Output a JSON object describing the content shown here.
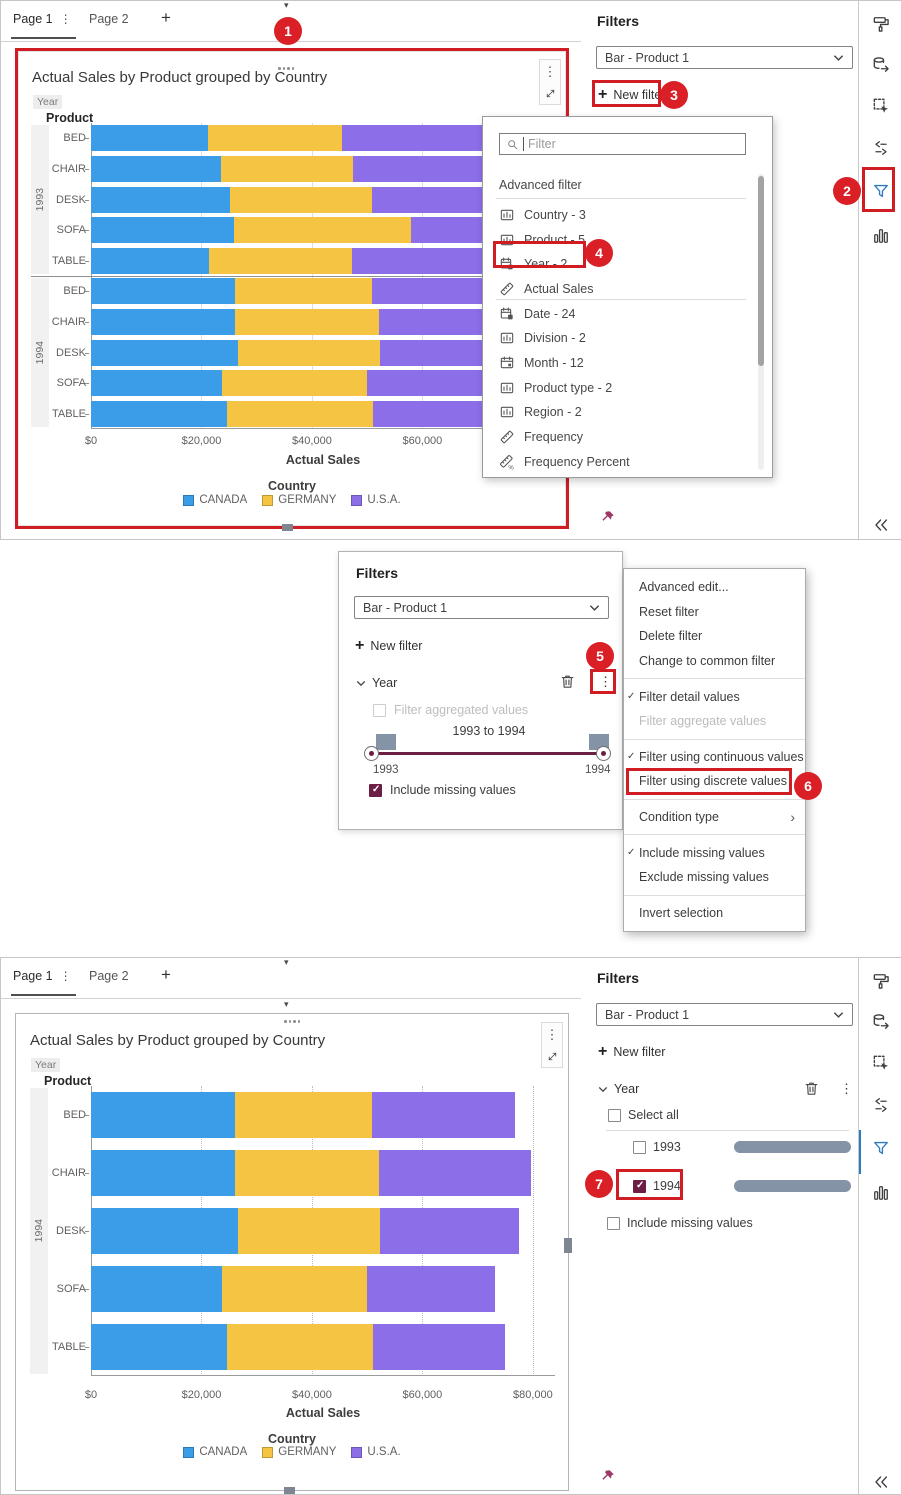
{
  "colors": {
    "series": [
      "#3b9ce8",
      "#f5c442",
      "#8c6ee8"
    ],
    "callout": "#da1f26",
    "highlight_box": "#d01d24",
    "checkbox_checked": "#6d1e45",
    "slider_track": "#6d1e45",
    "frequency_bar": "#8593a7",
    "active_rail_icon": "#2d7bbf"
  },
  "window_top": {
    "tabs": [
      {
        "label": "Page 1",
        "active": true
      },
      {
        "label": "Page 2",
        "active": false
      }
    ],
    "add_tab_label": "+",
    "filters_panel": {
      "title": "Filters",
      "object_selector": "Bar - Product 1",
      "new_filter_label": "New filter"
    },
    "field_list": {
      "search_placeholder": "Filter",
      "advanced_label": "Advanced filter",
      "items": [
        {
          "label": "Country - 3",
          "icon": "category-icon"
        },
        {
          "label": "Product - 5",
          "icon": "category-icon"
        },
        {
          "label": "Year - 2",
          "icon": "year-calendar-icon",
          "highlighted": true
        },
        {
          "label": "Actual Sales",
          "icon": "measure-icon",
          "divider_after": true
        },
        {
          "label": "Date - 24",
          "icon": "year-calendar-icon"
        },
        {
          "label": "Division - 2",
          "icon": "category-icon"
        },
        {
          "label": "Month - 12",
          "icon": "month-calendar-icon"
        },
        {
          "label": "Product type - 2",
          "icon": "category-icon"
        },
        {
          "label": "Region - 2",
          "icon": "category-icon"
        },
        {
          "label": "Frequency",
          "icon": "measure-icon"
        },
        {
          "label": "Frequency Percent",
          "icon": "measure-percent-icon"
        }
      ]
    }
  },
  "middle_panel": {
    "title": "Filters",
    "object_selector": "Bar - Product 1",
    "new_filter_label": "New filter",
    "year_filter": {
      "label": "Year",
      "aggregated_checkbox": "Filter aggregated values",
      "range_text": "1993 to 1994",
      "slider_min": "1993",
      "slider_max": "1994",
      "include_missing": "Include missing values",
      "include_missing_checked": true
    },
    "context_menu": {
      "groups": [
        [
          {
            "label": "Advanced edit..."
          },
          {
            "label": "Reset filter"
          },
          {
            "label": "Delete filter"
          },
          {
            "label": "Change to common filter"
          }
        ],
        [
          {
            "label": "Filter detail values",
            "checked": true
          },
          {
            "label": "Filter aggregate values",
            "disabled": true
          }
        ],
        [
          {
            "label": "Filter using continuous values",
            "checked": true
          },
          {
            "label": "Filter using discrete values",
            "highlighted": true
          }
        ],
        [
          {
            "label": "Condition type",
            "submenu": true
          }
        ],
        [
          {
            "label": "Include missing values",
            "checked": true
          },
          {
            "label": "Exclude missing values"
          }
        ],
        [
          {
            "label": "Invert selection"
          }
        ]
      ]
    }
  },
  "window_bottom": {
    "tabs": [
      {
        "label": "Page 1",
        "active": true
      },
      {
        "label": "Page 2",
        "active": false
      }
    ],
    "add_tab_label": "+",
    "filters_panel": {
      "title": "Filters",
      "object_selector": "Bar - Product 1",
      "new_filter_label": "New filter",
      "year_filter": {
        "label": "Year",
        "select_all": "Select all",
        "options": [
          {
            "label": "1993",
            "checked": false
          },
          {
            "label": "1994",
            "checked": true,
            "highlighted": true
          }
        ],
        "include_missing": "Include missing values",
        "include_missing_checked": false
      }
    }
  },
  "rail_icons": [
    "assign-data-icon",
    "export-data-icon",
    "selection-icon",
    "ranks-icon",
    "filter-icon",
    "chart-objects-icon"
  ],
  "collapse_icon": "collapse-icon",
  "callouts": [
    "1",
    "2",
    "3",
    "4",
    "5",
    "6",
    "7"
  ],
  "chart_data": [
    {
      "type": "bar",
      "stacked": true,
      "orientation": "horizontal",
      "title": "Actual Sales by Product grouped by Country",
      "group_label": "Year",
      "category_label": "Product",
      "xlabel": "Actual Sales",
      "legend_title": "Country",
      "legend_position": "bottom",
      "xlim": [
        0,
        84000
      ],
      "xticks": [
        {
          "value": 0,
          "label": "$0"
        },
        {
          "value": 20000,
          "label": "$20,000"
        },
        {
          "value": 40000,
          "label": "$40,000"
        },
        {
          "value": 60000,
          "label": "$60,000"
        }
      ],
      "series": [
        "CANADA",
        "GERMANY",
        "U.S.A."
      ],
      "series_colors": [
        "#3b9ce8",
        "#f5c442",
        "#8c6ee8"
      ],
      "groups": [
        {
          "year": "1993",
          "categories": [
            "BED",
            "CHAIR",
            "DESK",
            "SOFA",
            "TABLE"
          ],
          "values": [
            [
              21100,
              24400,
              27000
            ],
            [
              23600,
              23900,
              26000
            ],
            [
              25200,
              25700,
              25000
            ],
            [
              25900,
              32000,
              18000
            ],
            [
              21400,
              25900,
              26000
            ]
          ]
        },
        {
          "year": "1994",
          "categories": [
            "BED",
            "CHAIR",
            "DESK",
            "SOFA",
            "TABLE"
          ],
          "values": [
            [
              26000,
              24900,
              25800
            ],
            [
              26000,
              26200,
              27400
            ],
            [
              26700,
              25700,
              25100
            ],
            [
              23800,
              26200,
              23100
            ],
            [
              24700,
              26400,
              23800
            ]
          ]
        }
      ]
    },
    {
      "type": "bar",
      "stacked": true,
      "orientation": "horizontal",
      "title": "Actual Sales by Product grouped by Country",
      "group_label": "Year",
      "category_label": "Product",
      "xlabel": "Actual Sales",
      "legend_title": "Country",
      "legend_position": "bottom",
      "xlim": [
        0,
        84000
      ],
      "xticks": [
        {
          "value": 0,
          "label": "$0"
        },
        {
          "value": 20000,
          "label": "$20,000"
        },
        {
          "value": 40000,
          "label": "$40,000"
        },
        {
          "value": 60000,
          "label": "$60,000"
        },
        {
          "value": 80000,
          "label": "$80,000"
        }
      ],
      "series": [
        "CANADA",
        "GERMANY",
        "U.S.A."
      ],
      "series_colors": [
        "#3b9ce8",
        "#f5c442",
        "#8c6ee8"
      ],
      "groups": [
        {
          "year": "1994",
          "categories": [
            "BED",
            "CHAIR",
            "DESK",
            "SOFA",
            "TABLE"
          ],
          "values": [
            [
              26000,
              24900,
              25800
            ],
            [
              26000,
              26200,
              27400
            ],
            [
              26700,
              25700,
              25100
            ],
            [
              23800,
              26200,
              23100
            ],
            [
              24700,
              26400,
              23800
            ]
          ]
        }
      ]
    }
  ]
}
